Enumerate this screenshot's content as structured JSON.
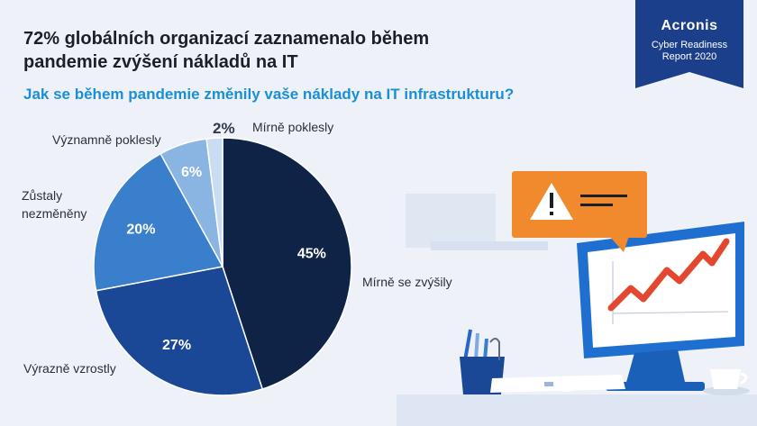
{
  "header": {
    "title_line1": "72% globálních organizací zaznamenalo během",
    "title_line2": "pandemie zvýšení nákladů na IT",
    "question": "Jak se během pandemie změnily vaše náklady na IT infrastrukturu?"
  },
  "badge": {
    "brand": "Acronis",
    "line1": "Cyber Readiness",
    "line2": "Report 2020"
  },
  "colors": {
    "background": "#eef2f8",
    "title": "#1b1f2a",
    "question": "#1a8fd6",
    "badge": "#1c3f8c",
    "alert": "#f08a2c",
    "trend": "#e4472f",
    "monitor": "#1f6fd1"
  },
  "chart_data": {
    "type": "pie",
    "title": "",
    "slices": [
      {
        "label": "Mírně se zvýšily",
        "value": 45,
        "value_label": "45%",
        "color": "#0f2346"
      },
      {
        "label": "Výrazně vzrostly",
        "value": 27,
        "value_label": "27%",
        "color": "#1a4796"
      },
      {
        "label": "Zůstaly nezměněny",
        "value": 20,
        "value_label": "20%",
        "color": "#3a7fcc"
      },
      {
        "label": "Významně poklesly",
        "value": 6,
        "value_label": "6%",
        "color": "#8ab4e2"
      },
      {
        "label": "Mírně poklesly",
        "value": 2,
        "value_label": "2%",
        "color": "#c9dcf2"
      }
    ]
  },
  "illustration": {
    "icons": [
      "warning-icon",
      "monitor-icon",
      "trend-line-icon",
      "pencil-cup-icon",
      "keyboard-icon",
      "mouse-icon",
      "coffee-cup-icon",
      "paperclip-icon"
    ]
  }
}
